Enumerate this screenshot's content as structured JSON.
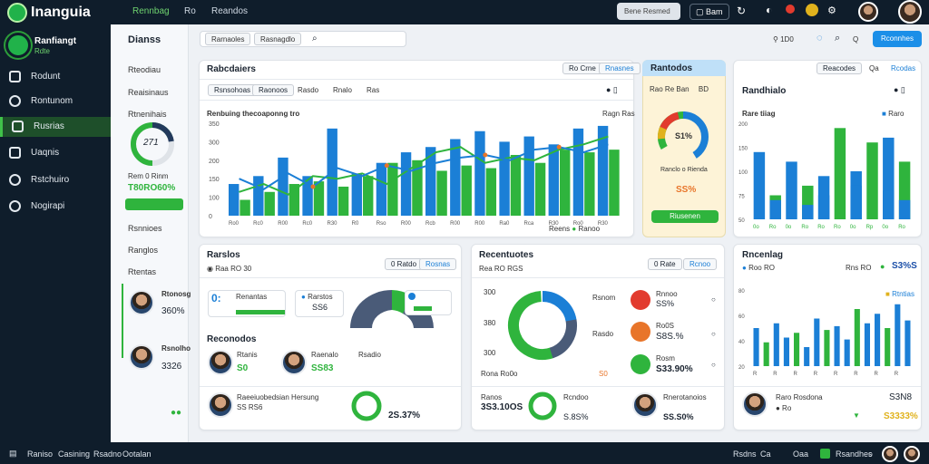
{
  "app": {
    "title": "Inanguia",
    "nav": [
      "Rennbag",
      "Ro",
      "Reandos"
    ]
  },
  "topbar": {
    "search_label": "Bene Resmed",
    "button_label": "Bam"
  },
  "sidebar": {
    "user_name": "Ranfiangt",
    "user_sub": "Rdte",
    "items": [
      {
        "label": "Rodunt"
      },
      {
        "label": "Rontunom"
      },
      {
        "label": "Rusrias"
      },
      {
        "label": "Uaqnis"
      },
      {
        "label": "Rstchuiro"
      },
      {
        "label": "Nogirapi"
      }
    ]
  },
  "panel2": {
    "title": "Dianss",
    "items": [
      "Rteodiau",
      "Reaisinaus",
      "Rtnenihais"
    ],
    "ring_value": "271",
    "stat_label": "Rem 0 Rinm",
    "stat_value": "T80RO60%",
    "items2": [
      "Rsnnioes",
      "Ranglos",
      "Rtentas"
    ],
    "people": [
      {
        "name": "Rtonosg",
        "value": "360%"
      },
      {
        "name": "Rsnolho",
        "value": "3326"
      }
    ]
  },
  "toolbar": {
    "buttons": [
      "Rarnaoles",
      "Rasnagdlo"
    ]
  },
  "header_right": {
    "items": [
      "1D0",
      "Q"
    ],
    "action": "Rconnhes"
  },
  "card_main": {
    "title": "Rabcdaiers",
    "tabs": [
      "Rsnsohoas",
      "Raonoos",
      "Rasdo",
      "Rnalo",
      "Ras"
    ],
    "pills": [
      "Ro Crne",
      "Rnasnes"
    ],
    "chart_title": "Renbuing thecoaponng tro",
    "legend": [
      "Ragn",
      "Ras"
    ],
    "legend_bottom": [
      "Reens",
      "Ranoo"
    ]
  },
  "card_yellow": {
    "title": "Rantodos",
    "row": [
      "Rao",
      "Re",
      "Ban",
      "BD"
    ],
    "donut_value": "S1%",
    "label": "Ranclo o Rienda",
    "pct": "SS%",
    "button": "Riusenen"
  },
  "card_right": {
    "title": "Randhialo",
    "pills": [
      "Reacodes",
      "Qa",
      "Rcodas"
    ],
    "chart_title": "Rare tiiag",
    "legend": [
      "Raro"
    ]
  },
  "card_bottom_left": {
    "title": "Rarslos",
    "subtitle": "Raa RO 30",
    "pills": [
      "0 Ratdo",
      "Rosnas"
    ],
    "tile1_label": "Renantas",
    "tile1_value": "0:",
    "tile2_label": "Rarstos",
    "tile2_value": "SS6",
    "section": "Reconodos",
    "people": [
      {
        "name": "Rtanis",
        "value": "S0"
      },
      {
        "name": "Raenalo",
        "value": "SS83"
      },
      {
        "name": "Rsadio",
        "value": ""
      }
    ],
    "bottom_name": "Raeeiuobedsian Hersung",
    "bottom_value": "SS RS6",
    "bottom_pct": "2S.37%"
  },
  "card_bottom_mid": {
    "title": "Recentuotes",
    "subtitle": "Rea RO RGS",
    "pills": [
      "0 Rate",
      "Rcnoo"
    ],
    "axis": [
      "300",
      "380",
      "300"
    ],
    "legend": [
      {
        "label": "Rnnoo",
        "value": "SS%"
      },
      {
        "label": "Ro0S",
        "value": "S8S.%"
      },
      {
        "label": "Rosm",
        "value": "S33.90%"
      }
    ],
    "footer_label": "Rona Ro0o",
    "footer_value": "3S3.10OS",
    "footer_pct": "S.8S%",
    "footer_right": "Rnerotanoios",
    "footer_right_value": "SS.S0%"
  },
  "card_bottom_right": {
    "title": "Rncenlag",
    "subtitle": "Roo RO",
    "value": "S3%S",
    "right_label": "Rns RO",
    "pill": "Rtntias",
    "person_name": "Raro Rosdona",
    "person_value": "S3N8",
    "person_pct": "S3333%"
  },
  "footer": {
    "items": [
      "Raniso",
      "Casining",
      "Rsadno",
      "Ootalan"
    ],
    "right": [
      "Rsdns",
      "Ca",
      "Oaa",
      "Rsandhes"
    ]
  },
  "colors": {
    "navy": "#0f1d2b",
    "green": "#2fb43d",
    "blue": "#1b7fd6",
    "orange": "#e8752a",
    "red": "#e23b2e"
  },
  "chart_data": [
    {
      "type": "bar",
      "title": "Renbuing thecoaponng tro",
      "categories": [
        "Ro0",
        "Rc0",
        "R00",
        "Rc0",
        "R30",
        "R0",
        "Rso",
        "R00",
        "Rcb",
        "R00",
        "R00",
        "Ra0",
        "Rca",
        "R30",
        "Ro0",
        "R30"
      ],
      "series": [
        {
          "name": "Ragn",
          "values": [
            120,
            150,
            220,
            150,
            330,
            160,
            200,
            240,
            260,
            290,
            320,
            280,
            300,
            270,
            330,
            340
          ]
        },
        {
          "name": "Ras",
          "values": [
            60,
            90,
            120,
            130,
            110,
            150,
            200,
            210,
            170,
            190,
            180,
            230,
            200,
            250,
            240,
            250
          ]
        }
      ],
      "lines": [
        {
          "values": [
            90,
            120,
            80,
            150,
            140,
            160,
            120,
            180,
            240,
            260,
            200,
            220,
            210,
            250,
            270,
            300
          ]
        },
        {
          "values": [
            140,
            100,
            160,
            110,
            180,
            150,
            190,
            170,
            200,
            220,
            230,
            210,
            250,
            260,
            240,
            270
          ]
        }
      ],
      "ylim": [
        0,
        350
      ],
      "yticks": [
        "0",
        "100",
        "150",
        "200",
        "300",
        "350"
      ]
    },
    {
      "type": "bar",
      "title": "Rare tiiag",
      "categories": [
        "0o",
        "Ro",
        "0o",
        "Ro",
        "Ro",
        "Ro",
        "0o",
        "Rp",
        "0o",
        "Ro"
      ],
      "series": [
        {
          "name": "Raro",
          "values": [
            140,
            50,
            120,
            70,
            90,
            190,
            100,
            160,
            170,
            120
          ]
        },
        {
          "name": "",
          "values": [
            0,
            40,
            0,
            30,
            50,
            0,
            70,
            0,
            60,
            40
          ]
        }
      ],
      "ylim": [
        0,
        200
      ],
      "yticks": [
        "50",
        "75",
        "100",
        "150",
        "200"
      ]
    },
    {
      "type": "bar",
      "title": "",
      "categories": [
        "R",
        "R",
        "R",
        "R",
        "R",
        "R",
        "R",
        "R",
        "R",
        "R",
        "R",
        "R",
        "R",
        "R",
        "R",
        "R"
      ],
      "series": [
        {
          "name": "",
          "values": [
            40,
            25,
            45,
            30,
            35,
            20,
            50,
            38,
            42,
            28,
            60,
            45,
            55,
            40,
            65,
            48
          ]
        }
      ],
      "ylim": [
        0,
        80
      ],
      "yticks": [
        "20",
        "40",
        "60",
        "80"
      ]
    }
  ]
}
